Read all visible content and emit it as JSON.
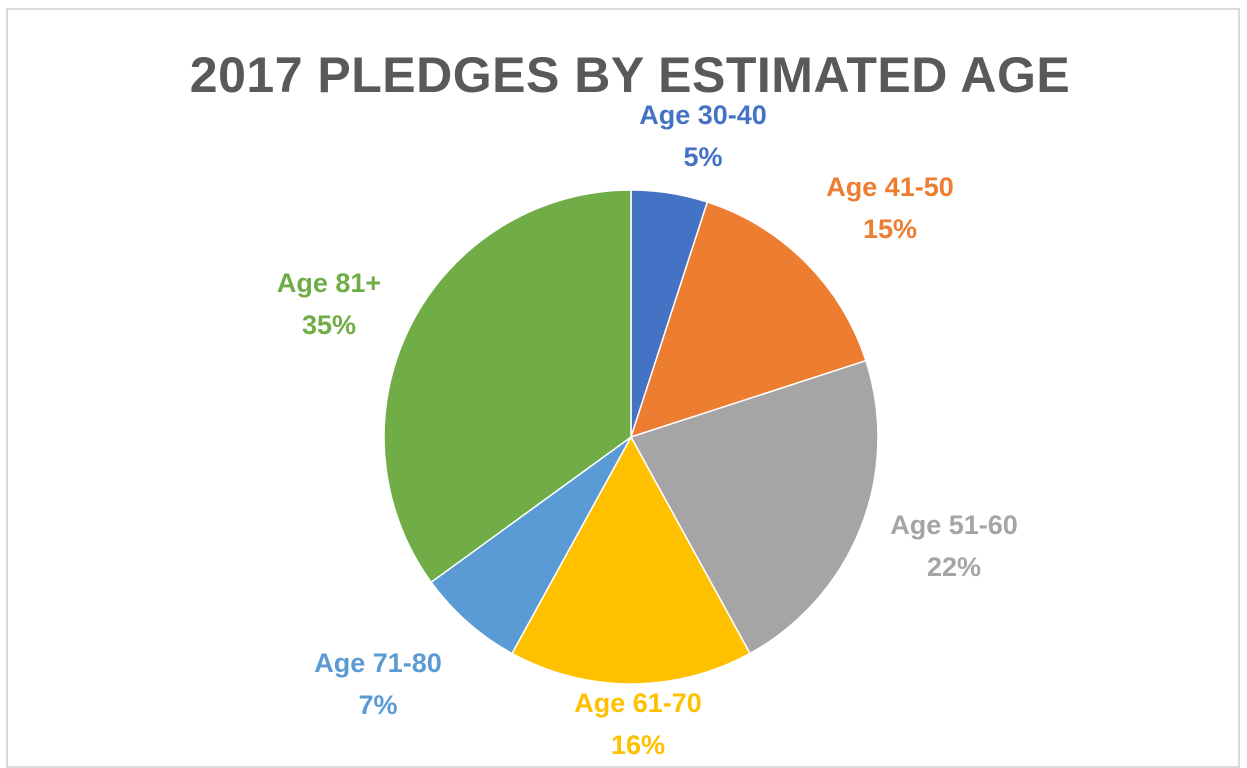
{
  "chart_data": {
    "type": "pie",
    "title": "2017 PLEDGES BY ESTIMATED AGE",
    "categories": [
      "Age 30-40",
      "Age 41-50",
      "Age 51-60",
      "Age 61-70",
      "Age 71-80",
      "Age 81+"
    ],
    "values": [
      5,
      15,
      22,
      16,
      7,
      35
    ],
    "value_labels": [
      "5%",
      "15%",
      "22%",
      "16%",
      "7%",
      "35%"
    ],
    "colors": [
      "#4472C4",
      "#ED7D31",
      "#A5A5A5",
      "#FFC000",
      "#5B9BD5",
      "#70AD47"
    ],
    "legend": "none",
    "data_labels": "category-and-percent"
  }
}
